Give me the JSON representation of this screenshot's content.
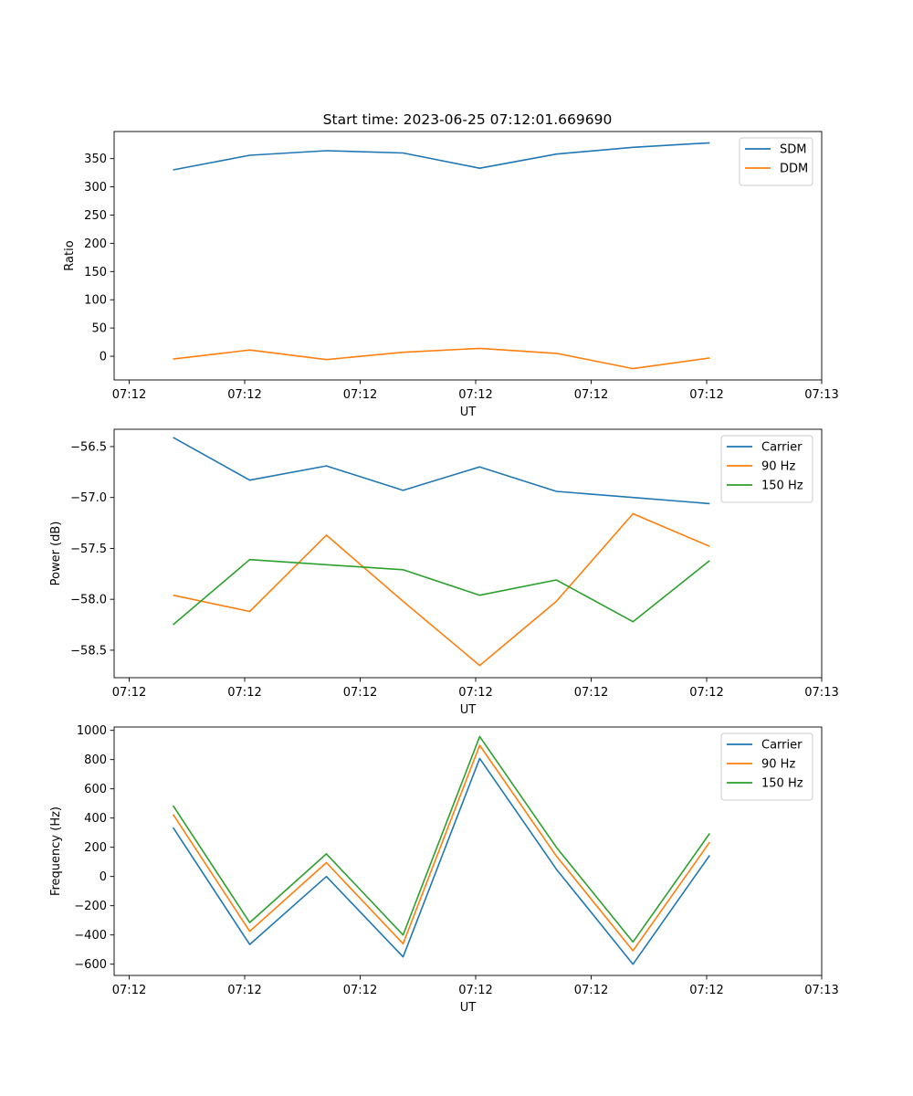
{
  "figure": {
    "title": "Start time: 2023-06-25 07:12:01.669690"
  },
  "chart_data": [
    {
      "type": "line",
      "xlabel": "UT",
      "ylabel": "Ratio",
      "x_ticks": [
        "07:12",
        "07:12",
        "07:12",
        "07:12",
        "07:12",
        "07:12",
        "07:13"
      ],
      "y_ticks": [
        0,
        50,
        100,
        150,
        200,
        250,
        300,
        350
      ],
      "xlim": [
        0,
        12
      ],
      "ylim": [
        -42,
        398
      ],
      "legend_position": "top-right",
      "grid": false,
      "x": [
        1,
        2.3,
        3.6,
        4.9,
        6.2,
        7.5,
        8.8,
        10.1
      ],
      "series": [
        {
          "name": "SDM",
          "color": "#1f77b4",
          "values": [
            330,
            356,
            364,
            360,
            333,
            358,
            370,
            378
          ]
        },
        {
          "name": "DDM",
          "color": "#ff7f0e",
          "values": [
            -5,
            11,
            -6,
            7,
            14,
            5,
            -22,
            -3
          ]
        }
      ]
    },
    {
      "type": "line",
      "xlabel": "UT",
      "ylabel": "Power (dB)",
      "x_ticks": [
        "07:12",
        "07:12",
        "07:12",
        "07:12",
        "07:12",
        "07:12",
        "07:13"
      ],
      "y_ticks": [
        -56.5,
        -57.0,
        -57.5,
        -58.0,
        -58.5
      ],
      "y_tick_labels": [
        "−56.5",
        "−57.0",
        "−57.5",
        "−58.0",
        "−58.5"
      ],
      "xlim": [
        0,
        12
      ],
      "ylim": [
        -58.77,
        -56.33
      ],
      "legend_position": "top-right",
      "grid": false,
      "x": [
        1,
        2.3,
        3.6,
        4.9,
        6.2,
        7.5,
        8.8,
        10.1
      ],
      "series": [
        {
          "name": "Carrier",
          "color": "#1f77b4",
          "values": [
            -56.41,
            -56.83,
            -56.69,
            -56.93,
            -56.7,
            -56.94,
            -57.0,
            -57.06
          ]
        },
        {
          "name": "90 Hz",
          "color": "#ff7f0e",
          "values": [
            -57.96,
            -58.12,
            -57.37,
            -58.02,
            -58.65,
            -58.02,
            -57.16,
            -57.48
          ]
        },
        {
          "name": "150 Hz",
          "color": "#2ca02c",
          "values": [
            -58.25,
            -57.61,
            -57.66,
            -57.71,
            -57.96,
            -57.81,
            -58.22,
            -57.62
          ]
        }
      ]
    },
    {
      "type": "line",
      "xlabel": "UT",
      "ylabel": "Frequency (Hz)",
      "x_ticks": [
        "07:12",
        "07:12",
        "07:12",
        "07:12",
        "07:12",
        "07:12",
        "07:13"
      ],
      "y_ticks": [
        1000,
        800,
        600,
        400,
        200,
        0,
        -200,
        -400,
        -600
      ],
      "y_tick_labels": [
        "1000",
        "800",
        "600",
        "400",
        "200",
        "0",
        "−200",
        "−400",
        "−600"
      ],
      "xlim": [
        0,
        12
      ],
      "ylim": [
        -677,
        1023
      ],
      "legend_position": "top-right",
      "grid": false,
      "x": [
        1,
        2.3,
        3.6,
        4.9,
        6.2,
        7.5,
        8.8,
        10.1
      ],
      "series": [
        {
          "name": "Carrier",
          "color": "#1f77b4",
          "values": [
            335,
            -465,
            0,
            -550,
            808,
            50,
            -600,
            145
          ]
        },
        {
          "name": "90 Hz",
          "color": "#ff7f0e",
          "values": [
            425,
            -375,
            95,
            -460,
            898,
            140,
            -508,
            235
          ]
        },
        {
          "name": "150 Hz",
          "color": "#2ca02c",
          "values": [
            485,
            -315,
            155,
            -400,
            958,
            200,
            -448,
            295
          ]
        }
      ]
    }
  ]
}
